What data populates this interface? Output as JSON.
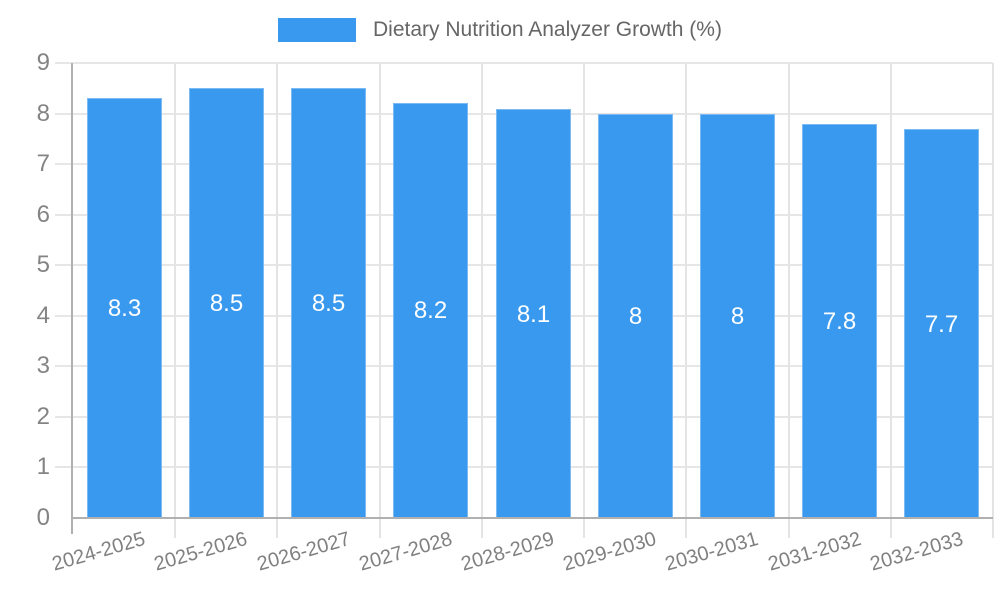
{
  "chart_data": {
    "type": "bar",
    "title": "Dietary Nutrition Analyzer Growth (%)",
    "legend_label": "Dietary Nutrition Analyzer Growth (%)",
    "legend_position": "top",
    "categories": [
      "2024-2025",
      "2025-2026",
      "2026-2027",
      "2027-2028",
      "2028-2029",
      "2029-2030",
      "2030-2031",
      "2031-2032",
      "2032-2033"
    ],
    "series": [
      {
        "name": "Dietary Nutrition Analyzer Growth (%)",
        "values": [
          8.3,
          8.5,
          8.5,
          8.2,
          8.1,
          8,
          8,
          7.8,
          7.7
        ]
      }
    ],
    "value_labels": [
      "8.3",
      "8.5",
      "8.5",
      "8.2",
      "8.1",
      "8",
      "8",
      "7.8",
      "7.7"
    ],
    "xlabel": "",
    "ylabel": "",
    "ylim": [
      0,
      9
    ],
    "y_ticks": [
      0,
      1,
      2,
      3,
      4,
      5,
      6,
      7,
      8,
      9
    ],
    "grid": true,
    "x_label_rotation_deg": -16,
    "colors": {
      "bar": "#3999ee",
      "bar_border": "#7cbaf3",
      "grid": "#e6e6e6",
      "axis": "#b0b0b0",
      "tick_label": "#808080",
      "legend_text": "#666666",
      "value_label": "#ffffff"
    }
  }
}
